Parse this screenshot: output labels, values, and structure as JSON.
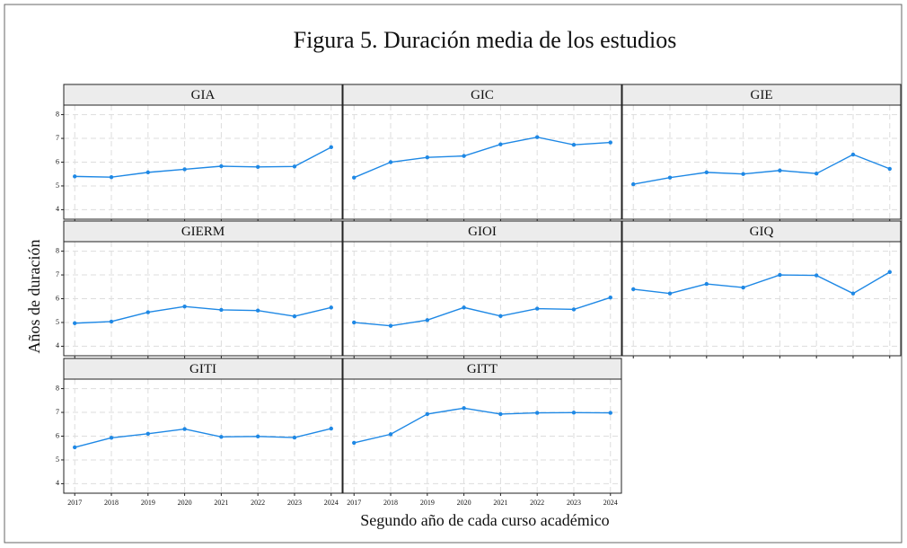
{
  "chart_data": {
    "type": "line",
    "title": "Figura 5. Duración media de los estudios",
    "xlabel": "Segundo año de cada curso académico",
    "ylabel": "Años de duración",
    "x": [
      2017,
      2018,
      2019,
      2020,
      2021,
      2022,
      2023,
      2024
    ],
    "xlim": [
      2016.7,
      2024.3
    ],
    "xticks": [
      2017,
      2018,
      2019,
      2020,
      2021,
      2022,
      2023,
      2024
    ],
    "ylim": [
      3.6,
      8.4
    ],
    "yticks": [
      4,
      5,
      6,
      7,
      8
    ],
    "grid": true,
    "series": [
      {
        "name": "GIA",
        "color": "#1e88e5",
        "values": [
          5.4,
          5.37,
          5.57,
          5.7,
          5.83,
          5.8,
          5.82,
          6.63
        ]
      },
      {
        "name": "GIC",
        "color": "#1e88e5",
        "values": [
          5.35,
          6.0,
          6.2,
          6.26,
          6.75,
          7.05,
          6.73,
          6.83
        ]
      },
      {
        "name": "GIE",
        "color": "#1e88e5",
        "values": [
          5.07,
          5.35,
          5.57,
          5.5,
          5.65,
          5.52,
          6.32,
          5.72
        ]
      },
      {
        "name": "GIERM",
        "color": "#1e88e5",
        "values": [
          4.97,
          5.04,
          5.43,
          5.67,
          5.53,
          5.5,
          5.26,
          5.63
        ]
      },
      {
        "name": "GIOI",
        "color": "#1e88e5",
        "values": [
          5.0,
          4.86,
          5.1,
          5.63,
          5.27,
          5.58,
          5.55,
          6.05
        ]
      },
      {
        "name": "GIQ",
        "color": "#1e88e5",
        "values": [
          6.4,
          6.22,
          6.62,
          6.47,
          7.0,
          6.98,
          6.22,
          7.12
        ]
      },
      {
        "name": "GITI",
        "color": "#1e88e5",
        "values": [
          5.53,
          5.93,
          6.1,
          6.3,
          5.97,
          5.99,
          5.94,
          6.32
        ]
      },
      {
        "name": "GITT",
        "color": "#1e88e5",
        "values": [
          5.72,
          6.08,
          6.93,
          7.18,
          6.93,
          6.98,
          6.99,
          6.98
        ]
      }
    ]
  }
}
